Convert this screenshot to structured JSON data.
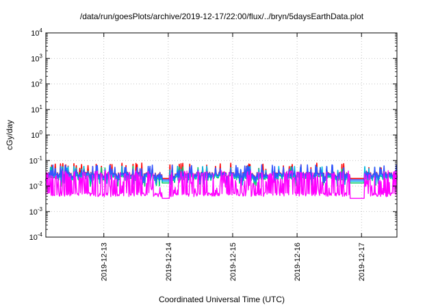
{
  "chart_data": {
    "type": "line",
    "title": "/data/run/goesPlots/archive/2019-12-17/22:00/flux/../bryn/5daysEarthData.plot",
    "xlabel": "Coordinated Universal Time (UTC)",
    "ylabel": "cGy/day",
    "yscale": "log",
    "ylim_exponents": [
      -4,
      4
    ],
    "y_tick_base": "10",
    "y_tick_exponents": [
      "-4",
      "-3",
      "-2",
      "-1",
      "0",
      "1",
      "2",
      "3",
      "4"
    ],
    "x_range_days": [
      0,
      5.45
    ],
    "x_ticks": [
      {
        "label": "2019-12-13",
        "day": 0.9
      },
      {
        "label": "2019-12-14",
        "day": 1.9
      },
      {
        "label": "2019-12-15",
        "day": 2.9
      },
      {
        "label": "2019-12-16",
        "day": 3.9
      },
      {
        "label": "2019-12-17",
        "day": 4.9
      }
    ],
    "grid": true,
    "legend": "none",
    "gaps_days": [
      [
        1.8,
        1.92
      ],
      [
        4.72,
        4.95
      ]
    ],
    "series": [
      {
        "color": "#ff0000",
        "baseline": 0.028,
        "spike_max": 0.08,
        "dip_min": 0.018
      },
      {
        "color": "#00cc66",
        "baseline": 0.022,
        "spike_max": 0.06,
        "dip_min": 0.012
      },
      {
        "color": "#00b8e6",
        "baseline": 0.024,
        "spike_max": 0.06,
        "dip_min": 0.014
      },
      {
        "color": "#3355ff",
        "baseline": 0.027,
        "spike_max": 0.07,
        "dip_min": 0.016
      },
      {
        "color": "#ff00ff",
        "baseline": 0.0045,
        "spike_max": 0.04,
        "dip_min": 0.003
      }
    ]
  }
}
